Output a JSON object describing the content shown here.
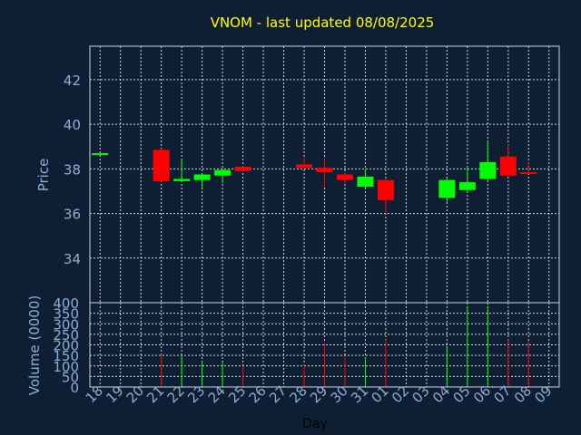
{
  "chart_data": {
    "type": "candlestick",
    "title": "VNOM - last updated 08/08/2025",
    "xlabel": "Day",
    "price_panel": {
      "ylabel": "Price",
      "ylim": [
        32.0,
        43.5
      ],
      "yticks": [
        34,
        36,
        38,
        40,
        42
      ]
    },
    "volume_panel": {
      "ylabel": "Volume (0000)",
      "ylim": [
        0,
        400
      ],
      "yticks": [
        0,
        50,
        100,
        150,
        200,
        250,
        300,
        350,
        400
      ]
    },
    "x_labels": [
      "18",
      "19",
      "20",
      "21",
      "22",
      "23",
      "24",
      "25",
      "26",
      "27",
      "28",
      "29",
      "30",
      "31",
      "01",
      "02",
      "03",
      "04",
      "05",
      "06",
      "07",
      "08",
      "09"
    ],
    "colors": {
      "up": "#00ff00",
      "down": "#ff0000",
      "title": "#ffff00",
      "axis_text": "#8aaed6",
      "grid": "#cfd6de",
      "background": "#0f1f33"
    },
    "candles": [
      {
        "day": "18",
        "open": 38.65,
        "high": 38.7,
        "low": 38.6,
        "close": 38.7,
        "volume": 0
      },
      {
        "day": "21",
        "open": 38.85,
        "high": 38.9,
        "low": 37.4,
        "close": 37.45,
        "volume": 155
      },
      {
        "day": "22",
        "open": 37.45,
        "high": 38.4,
        "low": 37.4,
        "close": 37.55,
        "volume": 145
      },
      {
        "day": "23",
        "open": 37.5,
        "high": 37.8,
        "low": 37.1,
        "close": 37.75,
        "volume": 120
      },
      {
        "day": "24",
        "open": 37.7,
        "high": 38.0,
        "low": 37.35,
        "close": 37.95,
        "volume": 115
      },
      {
        "day": "25",
        "open": 38.1,
        "high": 38.15,
        "low": 37.9,
        "close": 37.9,
        "volume": 100
      },
      {
        "day": "28",
        "open": 38.2,
        "high": 38.5,
        "low": 38.0,
        "close": 38.05,
        "volume": 105
      },
      {
        "day": "29",
        "open": 38.05,
        "high": 38.5,
        "low": 37.2,
        "close": 37.85,
        "volume": 210
      },
      {
        "day": "30",
        "open": 37.75,
        "high": 37.8,
        "low": 37.35,
        "close": 37.5,
        "volume": 145
      },
      {
        "day": "31",
        "open": 37.2,
        "high": 38.0,
        "low": 37.15,
        "close": 37.65,
        "volume": 140
      },
      {
        "day": "01",
        "open": 37.5,
        "high": 37.55,
        "low": 36.0,
        "close": 36.6,
        "volume": 225
      },
      {
        "day": "04",
        "open": 36.7,
        "high": 37.55,
        "low": 36.5,
        "close": 37.5,
        "volume": 190
      },
      {
        "day": "05",
        "open": 37.05,
        "high": 38.1,
        "low": 36.95,
        "close": 37.4,
        "volume": 380
      },
      {
        "day": "06",
        "open": 37.55,
        "high": 39.2,
        "low": 37.5,
        "close": 38.3,
        "volume": 380
      },
      {
        "day": "07",
        "open": 38.55,
        "high": 39.15,
        "low": 37.65,
        "close": 37.7,
        "volume": 225
      },
      {
        "day": "08",
        "open": 37.85,
        "high": 38.3,
        "low": 37.8,
        "close": 37.8,
        "volume": 215
      }
    ]
  }
}
